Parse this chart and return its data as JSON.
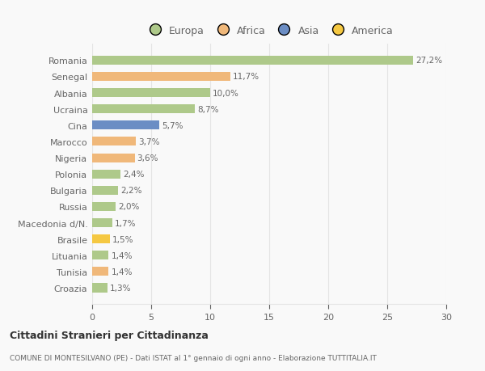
{
  "countries": [
    "Romania",
    "Senegal",
    "Albania",
    "Ucraina",
    "Cina",
    "Marocco",
    "Nigeria",
    "Polonia",
    "Bulgaria",
    "Russia",
    "Macedonia d/N.",
    "Brasile",
    "Lituania",
    "Tunisia",
    "Croazia"
  ],
  "values": [
    27.2,
    11.7,
    10.0,
    8.7,
    5.7,
    3.7,
    3.6,
    2.4,
    2.2,
    2.0,
    1.7,
    1.5,
    1.4,
    1.4,
    1.3
  ],
  "labels": [
    "27,2%",
    "11,7%",
    "10,0%",
    "8,7%",
    "5,7%",
    "3,7%",
    "3,6%",
    "2,4%",
    "2,2%",
    "2,0%",
    "1,7%",
    "1,5%",
    "1,4%",
    "1,4%",
    "1,3%"
  ],
  "colors": [
    "#aec98a",
    "#f0b87a",
    "#aec98a",
    "#aec98a",
    "#6b8dc4",
    "#f0b87a",
    "#f0b87a",
    "#aec98a",
    "#aec98a",
    "#aec98a",
    "#aec98a",
    "#f5c842",
    "#aec98a",
    "#f0b87a",
    "#aec98a"
  ],
  "legend_labels": [
    "Europa",
    "Africa",
    "Asia",
    "America"
  ],
  "legend_colors": [
    "#aec98a",
    "#f0b87a",
    "#6b8dc4",
    "#f5c842"
  ],
  "title": "Cittadini Stranieri per Cittadinanza",
  "subtitle": "COMUNE DI MONTESILVANO (PE) - Dati ISTAT al 1° gennaio di ogni anno - Elaborazione TUTTITALIA.IT",
  "xlim": [
    0,
    30
  ],
  "xticks": [
    0,
    5,
    10,
    15,
    20,
    25,
    30
  ],
  "background_color": "#f9f9f9",
  "grid_color": "#e5e5e5",
  "label_color": "#666666",
  "bar_height": 0.55
}
